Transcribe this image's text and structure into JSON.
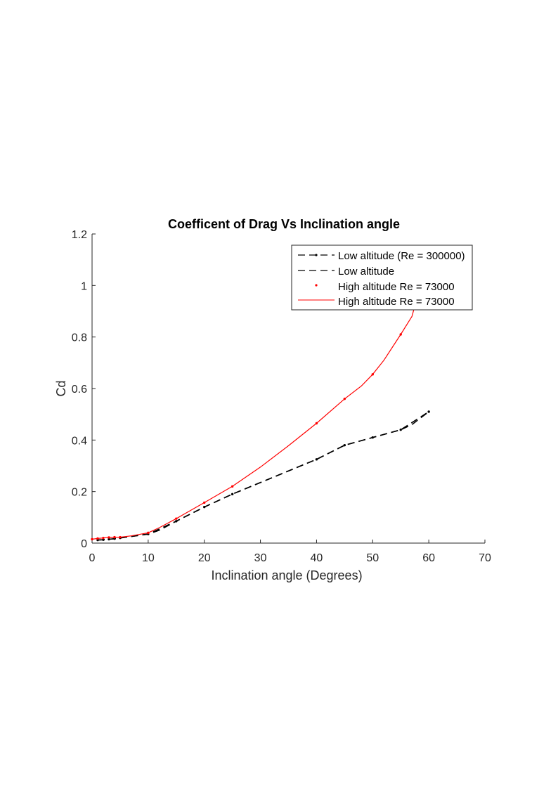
{
  "chart_data": {
    "type": "line",
    "title": "Coefficent of Drag Vs Inclination angle",
    "xlabel": "Inclination angle (Degrees)",
    "ylabel": "Cd",
    "xlim": [
      0,
      70
    ],
    "ylim": [
      0,
      1.2
    ],
    "xticks": [
      0,
      10,
      20,
      30,
      40,
      50,
      60,
      70
    ],
    "yticks": [
      0,
      0.2,
      0.4,
      0.6,
      0.8,
      1,
      1.2
    ],
    "xtick_labels": [
      "0",
      "10",
      "20",
      "30",
      "40",
      "50",
      "60",
      "70"
    ],
    "ytick_labels": [
      "0",
      "0.2",
      "0.4",
      "0.6",
      "0.8",
      "1",
      "1.2"
    ],
    "grid": false,
    "legend_position": "top-right",
    "series": [
      {
        "name": "Low altitude (Re = 300000)",
        "style": "dashed-with-markers",
        "color": "#000000",
        "x": [
          1,
          2,
          3,
          4,
          5,
          10,
          15,
          20,
          25,
          40,
          45,
          50,
          55,
          60
        ],
        "y": [
          0.012,
          0.013,
          0.015,
          0.017,
          0.02,
          0.035,
          0.085,
          0.14,
          0.19,
          0.325,
          0.38,
          0.41,
          0.44,
          0.51
        ]
      },
      {
        "name": "Low altitude",
        "style": "dashed",
        "color": "#000000",
        "x": [
          1,
          2,
          3,
          4,
          5,
          10,
          12,
          15,
          20,
          25,
          30,
          40,
          45,
          50,
          55,
          57,
          60
        ],
        "y": [
          0.012,
          0.013,
          0.015,
          0.017,
          0.02,
          0.035,
          0.05,
          0.085,
          0.14,
          0.19,
          0.235,
          0.325,
          0.38,
          0.41,
          0.44,
          0.46,
          0.51
        ]
      },
      {
        "name": "High altitude Re = 73000",
        "style": "markers",
        "color": "#ff0000",
        "x": [
          0,
          1,
          2,
          3,
          4,
          5,
          10,
          15,
          20,
          25,
          40,
          45,
          50,
          55,
          57.5
        ],
        "y": [
          0.015,
          0.018,
          0.02,
          0.022,
          0.023,
          0.023,
          0.04,
          0.095,
          0.157,
          0.22,
          0.465,
          0.56,
          0.655,
          0.81,
          0.92
        ]
      },
      {
        "name": "High altitude Re = 73000",
        "style": "solid",
        "color": "#ff0000",
        "x": [
          0,
          1,
          2,
          3,
          4,
          5,
          7,
          10,
          12,
          15,
          20,
          25,
          30,
          35,
          40,
          45,
          48,
          50,
          52,
          55,
          57,
          57.5
        ],
        "y": [
          0.015,
          0.018,
          0.02,
          0.022,
          0.023,
          0.023,
          0.028,
          0.04,
          0.06,
          0.095,
          0.157,
          0.22,
          0.295,
          0.378,
          0.465,
          0.56,
          0.61,
          0.655,
          0.71,
          0.81,
          0.88,
          0.92
        ]
      }
    ]
  }
}
